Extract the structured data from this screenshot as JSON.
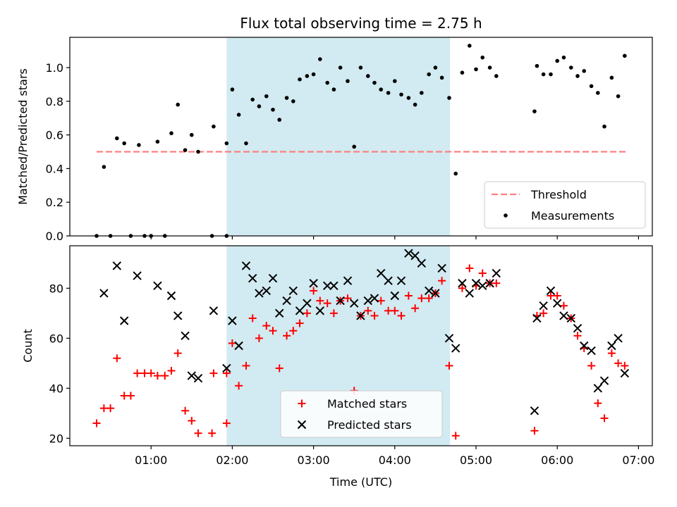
{
  "figure": {
    "title": "Flux total observing time = 2.75 h",
    "xlabel": "Time (UTC)"
  },
  "colors": {
    "shade": "#add8e6",
    "threshold": "#ff7f7f",
    "measurement": "#000000",
    "matched": "#ff0000",
    "predicted": "#000000",
    "axes": "#000000",
    "background": "#ffffff"
  },
  "chart_data": [
    {
      "type": "scatter",
      "panel": "top",
      "ylabel": "Matched/Predicted stars",
      "xlim": [
        0.0,
        7.17
      ],
      "ylim": [
        0.0,
        1.18
      ],
      "x_ticks": [
        {
          "x": 1.0,
          "label": "01:00"
        },
        {
          "x": 2.0,
          "label": "02:00"
        },
        {
          "x": 3.0,
          "label": "03:00"
        },
        {
          "x": 4.0,
          "label": "04:00"
        },
        {
          "x": 5.0,
          "label": "05:00"
        },
        {
          "x": 6.0,
          "label": "06:00"
        },
        {
          "x": 7.0,
          "label": "07:00"
        }
      ],
      "y_ticks": [
        {
          "y": 0.0,
          "label": "0.0"
        },
        {
          "y": 0.2,
          "label": "0.2"
        },
        {
          "y": 0.4,
          "label": "0.4"
        },
        {
          "y": 0.6,
          "label": "0.6"
        },
        {
          "y": 0.8,
          "label": "0.8"
        },
        {
          "y": 1.0,
          "label": "1.0"
        }
      ],
      "show_x_tick_labels": false,
      "shaded_interval": [
        1.93,
        4.68
      ],
      "threshold": {
        "name": "Threshold",
        "y": 0.5,
        "x_start": 0.33,
        "x_end": 6.85,
        "style": "dashed"
      },
      "measurements": {
        "name": "Measurements",
        "points": [
          [
            0.33,
            0.0
          ],
          [
            0.42,
            0.41
          ],
          [
            0.5,
            0.0
          ],
          [
            0.58,
            0.58
          ],
          [
            0.67,
            0.55
          ],
          [
            0.75,
            0.0
          ],
          [
            0.85,
            0.54
          ],
          [
            0.92,
            0.0
          ],
          [
            1.0,
            0.0
          ],
          [
            1.08,
            0.56
          ],
          [
            1.17,
            0.0
          ],
          [
            1.25,
            0.61
          ],
          [
            1.33,
            0.78
          ],
          [
            1.42,
            0.51
          ],
          [
            1.5,
            0.6
          ],
          [
            1.58,
            0.5
          ],
          [
            1.75,
            0.0
          ],
          [
            1.77,
            0.65
          ],
          [
            1.93,
            0.0
          ],
          [
            1.93,
            0.55
          ],
          [
            2.0,
            0.87
          ],
          [
            2.08,
            0.72
          ],
          [
            2.17,
            0.55
          ],
          [
            2.25,
            0.81
          ],
          [
            2.33,
            0.77
          ],
          [
            2.42,
            0.83
          ],
          [
            2.5,
            0.75
          ],
          [
            2.58,
            0.69
          ],
          [
            2.67,
            0.82
          ],
          [
            2.75,
            0.8
          ],
          [
            2.83,
            0.93
          ],
          [
            2.92,
            0.95
          ],
          [
            3.0,
            0.96
          ],
          [
            3.08,
            1.05
          ],
          [
            3.17,
            0.91
          ],
          [
            3.25,
            0.87
          ],
          [
            3.33,
            1.0
          ],
          [
            3.42,
            0.92
          ],
          [
            3.5,
            0.53
          ],
          [
            3.58,
            1.0
          ],
          [
            3.67,
            0.95
          ],
          [
            3.75,
            0.91
          ],
          [
            3.83,
            0.87
          ],
          [
            3.92,
            0.85
          ],
          [
            4.0,
            0.92
          ],
          [
            4.08,
            0.84
          ],
          [
            4.17,
            0.82
          ],
          [
            4.25,
            0.78
          ],
          [
            4.33,
            0.85
          ],
          [
            4.42,
            0.96
          ],
          [
            4.5,
            1.0
          ],
          [
            4.58,
            0.94
          ],
          [
            4.67,
            0.82
          ],
          [
            4.75,
            0.37
          ],
          [
            4.83,
            0.97
          ],
          [
            4.92,
            1.13
          ],
          [
            5.0,
            0.99
          ],
          [
            5.08,
            1.06
          ],
          [
            5.17,
            1.0
          ],
          [
            5.25,
            0.95
          ],
          [
            5.72,
            0.74
          ],
          [
            5.75,
            1.01
          ],
          [
            5.83,
            0.96
          ],
          [
            5.92,
            0.96
          ],
          [
            6.0,
            1.04
          ],
          [
            6.08,
            1.06
          ],
          [
            6.17,
            1.0
          ],
          [
            6.25,
            0.95
          ],
          [
            6.33,
            0.98
          ],
          [
            6.42,
            0.89
          ],
          [
            6.5,
            0.85
          ],
          [
            6.58,
            0.65
          ],
          [
            6.67,
            0.94
          ],
          [
            6.75,
            0.83
          ],
          [
            6.83,
            1.07
          ]
        ]
      },
      "legend": {
        "placement": "lower right",
        "entries": [
          "Threshold",
          "Measurements"
        ]
      }
    },
    {
      "type": "scatter",
      "panel": "bottom",
      "ylabel": "Count",
      "xlim": [
        0.0,
        7.17
      ],
      "ylim": [
        17.0,
        97.0
      ],
      "x_ticks": [
        {
          "x": 1.0,
          "label": "01:00"
        },
        {
          "x": 2.0,
          "label": "02:00"
        },
        {
          "x": 3.0,
          "label": "03:00"
        },
        {
          "x": 4.0,
          "label": "04:00"
        },
        {
          "x": 5.0,
          "label": "05:00"
        },
        {
          "x": 6.0,
          "label": "06:00"
        },
        {
          "x": 7.0,
          "label": "07:00"
        }
      ],
      "y_ticks": [
        {
          "y": 20,
          "label": "20"
        },
        {
          "y": 40,
          "label": "40"
        },
        {
          "y": 60,
          "label": "60"
        },
        {
          "y": 80,
          "label": "80"
        }
      ],
      "show_x_tick_labels": true,
      "shaded_interval": [
        1.93,
        4.68
      ],
      "series": [
        {
          "name": "Matched stars",
          "marker": "plus",
          "points": [
            [
              0.33,
              26
            ],
            [
              0.42,
              32
            ],
            [
              0.5,
              32
            ],
            [
              0.58,
              52
            ],
            [
              0.67,
              37
            ],
            [
              0.75,
              37
            ],
            [
              0.83,
              46
            ],
            [
              0.92,
              46
            ],
            [
              1.0,
              46
            ],
            [
              1.08,
              45
            ],
            [
              1.17,
              45
            ],
            [
              1.25,
              47
            ],
            [
              1.33,
              54
            ],
            [
              1.42,
              31
            ],
            [
              1.5,
              27
            ],
            [
              1.58,
              22
            ],
            [
              1.75,
              22
            ],
            [
              1.77,
              46
            ],
            [
              1.93,
              46
            ],
            [
              1.93,
              26
            ],
            [
              2.0,
              58
            ],
            [
              2.08,
              41
            ],
            [
              2.17,
              49
            ],
            [
              2.25,
              68
            ],
            [
              2.33,
              60
            ],
            [
              2.42,
              65
            ],
            [
              2.5,
              63
            ],
            [
              2.58,
              48
            ],
            [
              2.67,
              61
            ],
            [
              2.75,
              63
            ],
            [
              2.83,
              66
            ],
            [
              2.92,
              70
            ],
            [
              3.0,
              79
            ],
            [
              3.08,
              75
            ],
            [
              3.17,
              74
            ],
            [
              3.25,
              70
            ],
            [
              3.33,
              75
            ],
            [
              3.42,
              76
            ],
            [
              3.5,
              39
            ],
            [
              3.58,
              69
            ],
            [
              3.67,
              71
            ],
            [
              3.75,
              69
            ],
            [
              3.83,
              75
            ],
            [
              3.92,
              71
            ],
            [
              4.0,
              71
            ],
            [
              4.08,
              69
            ],
            [
              4.17,
              77
            ],
            [
              4.25,
              72
            ],
            [
              4.33,
              76
            ],
            [
              4.42,
              76
            ],
            [
              4.5,
              78
            ],
            [
              4.58,
              83
            ],
            [
              4.67,
              49
            ],
            [
              4.75,
              21
            ],
            [
              4.83,
              80
            ],
            [
              4.92,
              88
            ],
            [
              5.0,
              81
            ],
            [
              5.08,
              86
            ],
            [
              5.17,
              82
            ],
            [
              5.25,
              82
            ],
            [
              5.72,
              23
            ],
            [
              5.75,
              69
            ],
            [
              5.83,
              70
            ],
            [
              5.92,
              77
            ],
            [
              6.0,
              77
            ],
            [
              6.08,
              73
            ],
            [
              6.17,
              68
            ],
            [
              6.25,
              61
            ],
            [
              6.33,
              56
            ],
            [
              6.42,
              49
            ],
            [
              6.5,
              34
            ],
            [
              6.58,
              28
            ],
            [
              6.67,
              54
            ],
            [
              6.75,
              50
            ],
            [
              6.83,
              49
            ]
          ]
        },
        {
          "name": "Predicted stars",
          "marker": "x",
          "points": [
            [
              0.42,
              78
            ],
            [
              0.58,
              89
            ],
            [
              0.67,
              67
            ],
            [
              0.83,
              85
            ],
            [
              1.08,
              81
            ],
            [
              1.25,
              77
            ],
            [
              1.33,
              69
            ],
            [
              1.42,
              61
            ],
            [
              1.5,
              45
            ],
            [
              1.58,
              44
            ],
            [
              1.77,
              71
            ],
            [
              1.93,
              48
            ],
            [
              2.0,
              67
            ],
            [
              2.08,
              57
            ],
            [
              2.17,
              89
            ],
            [
              2.25,
              84
            ],
            [
              2.33,
              78
            ],
            [
              2.42,
              79
            ],
            [
              2.5,
              84
            ],
            [
              2.58,
              70
            ],
            [
              2.67,
              75
            ],
            [
              2.75,
              79
            ],
            [
              2.83,
              71
            ],
            [
              2.92,
              74
            ],
            [
              3.0,
              82
            ],
            [
              3.08,
              71
            ],
            [
              3.17,
              81
            ],
            [
              3.25,
              81
            ],
            [
              3.33,
              75
            ],
            [
              3.42,
              83
            ],
            [
              3.5,
              74
            ],
            [
              3.58,
              69
            ],
            [
              3.67,
              75
            ],
            [
              3.75,
              76
            ],
            [
              3.83,
              86
            ],
            [
              3.92,
              83
            ],
            [
              4.0,
              77
            ],
            [
              4.08,
              83
            ],
            [
              4.17,
              94
            ],
            [
              4.25,
              93
            ],
            [
              4.33,
              90
            ],
            [
              4.42,
              79
            ],
            [
              4.5,
              78
            ],
            [
              4.58,
              88
            ],
            [
              4.67,
              60
            ],
            [
              4.75,
              56
            ],
            [
              4.83,
              82
            ],
            [
              4.92,
              78
            ],
            [
              5.0,
              82
            ],
            [
              5.08,
              81
            ],
            [
              5.17,
              82
            ],
            [
              5.25,
              86
            ],
            [
              5.72,
              31
            ],
            [
              5.75,
              68
            ],
            [
              5.83,
              73
            ],
            [
              5.92,
              79
            ],
            [
              6.0,
              74
            ],
            [
              6.08,
              69
            ],
            [
              6.17,
              68
            ],
            [
              6.25,
              64
            ],
            [
              6.33,
              57
            ],
            [
              6.42,
              55
            ],
            [
              6.5,
              40
            ],
            [
              6.58,
              43
            ],
            [
              6.67,
              57
            ],
            [
              6.75,
              60
            ],
            [
              6.83,
              46
            ]
          ]
        }
      ],
      "legend": {
        "placement": "lower center",
        "entries": [
          "Matched stars",
          "Predicted stars"
        ]
      }
    }
  ]
}
